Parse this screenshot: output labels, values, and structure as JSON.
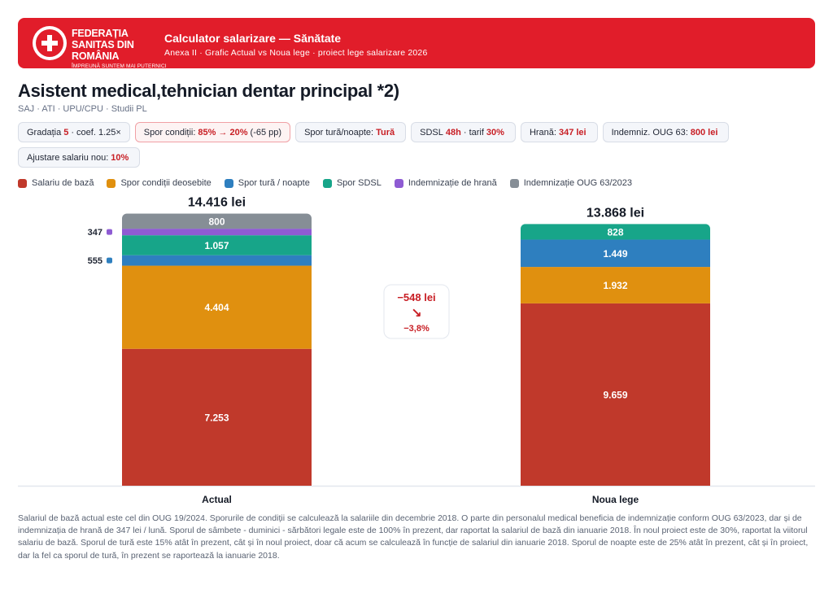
{
  "header": {
    "org_name": "FEDERAȚIA SANITAS DIN ROMÂNIA",
    "org_motto": "ÎMPREUNĂ SUNTEM MAI PUTERNICI",
    "title": "Calculator salarizare — Sănătate",
    "subtitle": "Anexa II · Grafic Actual vs Noua lege · proiect lege salarizare 2026"
  },
  "page": {
    "title": "Asistent medical,tehnician dentar principal *2)",
    "subtitle": "SAJ · ATI · UPU/CPU · Studii PL"
  },
  "chips": [
    {
      "pre": "Gradația",
      "val": "5",
      "post": "· coef. 1.25×",
      "warn": false
    },
    {
      "pre": "Spor condiții:",
      "val": "85% → 20%",
      "post": "(-65 pp)",
      "warn": true
    },
    {
      "pre": "Spor tură/noapte:",
      "val": "Tură",
      "post": "",
      "warn": false
    },
    {
      "pre": "SDSL",
      "val": "48h",
      "post": "· tarif",
      "val2": "30%",
      "warn": false
    },
    {
      "pre": "Hrană:",
      "val": "347 lei",
      "post": "",
      "warn": false
    },
    {
      "pre": "Indemniz. OUG 63:",
      "val": "800 lei",
      "post": "",
      "warn": false
    },
    {
      "pre": "Ajustare salariu nou:",
      "val": "10%",
      "post": "",
      "warn": false
    }
  ],
  "colors": {
    "base": "#c0392b",
    "conditions": "#e0900f",
    "shift": "#2e7fbf",
    "sdsl": "#17a589",
    "food": "#8e5bd3",
    "oug": "#868e96",
    "brand": "#e11d2a"
  },
  "chart_data": {
    "type": "bar",
    "stacked": true,
    "categories": [
      "Actual",
      "Noua lege"
    ],
    "series": [
      {
        "name": "Salariu de bază",
        "color_key": "base",
        "values": [
          7253,
          9659
        ]
      },
      {
        "name": "Spor condiții deosebite",
        "color_key": "conditions",
        "values": [
          4404,
          1932
        ]
      },
      {
        "name": "Spor tură / noapte",
        "color_key": "shift",
        "values": [
          555,
          1449
        ]
      },
      {
        "name": "Spor SDSL",
        "color_key": "sdsl",
        "values": [
          1057,
          828
        ]
      },
      {
        "name": "Indemnizație de hrană",
        "color_key": "food",
        "values": [
          347,
          0
        ]
      },
      {
        "name": "Indemnizație OUG 63/2023",
        "color_key": "oug",
        "values": [
          800,
          0
        ]
      }
    ],
    "totals": [
      "14.416 lei",
      "13.868 lei"
    ],
    "value_labels": [
      [
        "7.253",
        "4.404",
        "555",
        "1.057",
        "347",
        "800"
      ],
      [
        "9.659",
        "1.932",
        "1.449",
        "828",
        "",
        ""
      ]
    ],
    "delta": {
      "amount": "−548 lei",
      "arrow": "↘",
      "percent": "−3,8%"
    },
    "legend_position": "top-left",
    "grid": false
  },
  "note": "Salariul de bază actual este cel din OUG 19/2024. Sporurile de condiții se calculează la salariile din decembrie 2018. O parte din personalul medical beneficia de indemnizație conform OUG 63/2023, dar și de indemnizația de hrană de 347 lei / lună. Sporul de sâmbete - duminici - sărbători legale este de 100% în prezent, dar raportat la salariul de bază din ianuarie 2018. În noul proiect este de 30%, raportat la viitorul salariu de bază. Sporul de tură este 15% atât în prezent, cât și în noul proiect, doar că acum se calculează în funcție de salariul din ianuarie 2018. Sporul de noapte este de 25% atât în prezent, cât și în proiect, dar la fel ca sporul de tură, în prezent se raportează la ianuarie 2018."
}
